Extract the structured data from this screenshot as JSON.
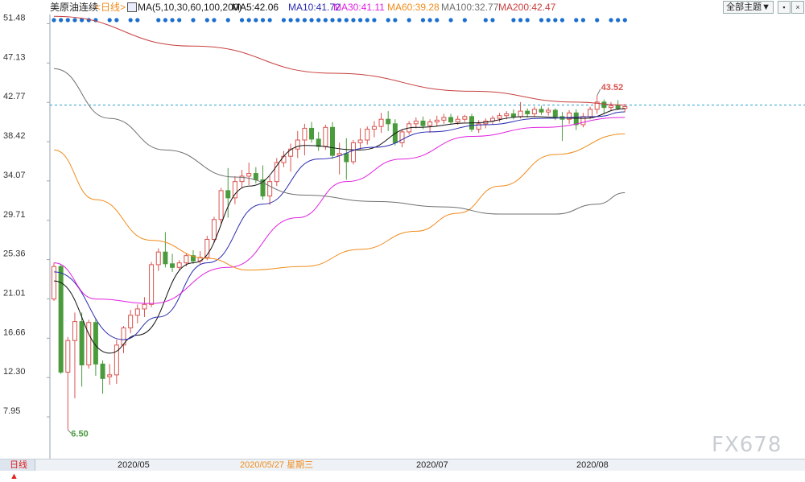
{
  "header": {
    "symbol": "美原油连续",
    "timeframe_tag": "<日线>",
    "ma_label": "MA(5,10,30,60,100,200)",
    "ma5": "MA5:42.06",
    "ma10": "MA10:41.72",
    "ma30": "MA30:41.11",
    "ma60": "MA60:39.28",
    "ma100": "MA100:32.77",
    "ma200": "MA200:42.47",
    "theme_button": "全部主题▼"
  },
  "footer": {
    "timeframe_tab": "日线 ▲",
    "dates": [
      "2020/05",
      "2020/05/27 星期三",
      "2020/07",
      "2020/08"
    ]
  },
  "watermark": "FX678",
  "colors": {
    "up": "#d9534f",
    "down": "#4a9b3c",
    "ma5": "#111111",
    "ma10": "#2b2bb0",
    "ma30": "#e020e0",
    "ma60": "#f08c1c",
    "ma100": "#707070",
    "ma200": "#c84040",
    "dots": "#1a6ecf",
    "ref_line": "#2aa0d0"
  },
  "chart_data": {
    "type": "candlestick",
    "title": "美原油连续",
    "y_ticks": [
      51.48,
      47.13,
      42.77,
      38.42,
      34.07,
      29.71,
      25.36,
      21.01,
      16.66,
      12.3,
      7.95
    ],
    "ylim": [
      3.5,
      52.5
    ],
    "x_ticks": [
      "2020/05",
      "2020/07",
      "2020/08"
    ],
    "highlighted_date": "2020/05/27 星期三",
    "annotations": {
      "high": "43.52",
      "low": "6.50"
    },
    "reference_line": 42.47,
    "ohlc": [
      [
        21.0,
        25.0,
        20.8,
        24.6
      ],
      [
        24.6,
        24.8,
        12.7,
        12.9
      ],
      [
        12.9,
        16.8,
        6.5,
        16.4
      ],
      [
        16.4,
        19.5,
        10.0,
        18.5
      ],
      [
        18.5,
        19.5,
        11.3,
        13.7
      ],
      [
        13.7,
        18.7,
        13.3,
        18.4
      ],
      [
        18.4,
        18.8,
        12.5,
        13.8
      ],
      [
        13.8,
        14.2,
        10.5,
        12.2
      ],
      [
        12.4,
        13.8,
        11.5,
        12.6
      ],
      [
        12.6,
        16.5,
        11.6,
        15.9
      ],
      [
        15.9,
        18.0,
        15.0,
        17.8
      ],
      [
        17.8,
        19.8,
        17.2,
        19.2
      ],
      [
        19.2,
        20.4,
        18.3,
        19.9
      ],
      [
        19.9,
        21.2,
        19.0,
        20.4
      ],
      [
        20.4,
        25.1,
        20.1,
        24.8
      ],
      [
        24.8,
        26.6,
        24.1,
        26.2
      ],
      [
        26.2,
        28.4,
        24.5,
        24.9
      ],
      [
        24.9,
        26.0,
        24.0,
        24.5
      ],
      [
        24.5,
        25.3,
        24.2,
        25.0
      ],
      [
        25.0,
        26.1,
        24.6,
        25.8
      ],
      [
        25.8,
        26.4,
        24.9,
        25.2
      ],
      [
        25.2,
        26.3,
        24.8,
        25.6
      ],
      [
        25.6,
        28.0,
        25.3,
        27.6
      ],
      [
        27.6,
        30.1,
        27.2,
        29.8
      ],
      [
        29.8,
        33.3,
        29.3,
        33.0
      ],
      [
        33.0,
        35.5,
        30.0,
        32.2
      ],
      [
        32.2,
        34.6,
        31.5,
        34.0
      ],
      [
        34.0,
        35.3,
        33.3,
        34.6
      ],
      [
        34.6,
        36.1,
        33.6,
        34.9
      ],
      [
        34.9,
        35.6,
        33.8,
        34.2
      ],
      [
        34.2,
        35.8,
        32.0,
        32.4
      ],
      [
        32.4,
        34.6,
        31.4,
        34.0
      ],
      [
        34.0,
        36.6,
        33.5,
        36.1
      ],
      [
        36.1,
        37.4,
        35.6,
        36.8
      ],
      [
        36.8,
        38.2,
        35.1,
        37.6
      ],
      [
        37.6,
        39.6,
        36.6,
        38.6
      ],
      [
        38.6,
        40.4,
        36.9,
        39.9
      ],
      [
        39.9,
        40.6,
        38.3,
        38.7
      ],
      [
        38.7,
        39.5,
        37.4,
        37.9
      ],
      [
        37.9,
        40.3,
        37.5,
        40.0
      ],
      [
        40.0,
        40.6,
        36.5,
        36.9
      ],
      [
        36.9,
        38.3,
        34.8,
        37.1
      ],
      [
        37.1,
        38.8,
        34.2,
        36.2
      ],
      [
        36.2,
        38.6,
        35.9,
        38.3
      ],
      [
        38.3,
        39.9,
        37.6,
        38.6
      ],
      [
        38.6,
        40.1,
        38.1,
        39.8
      ],
      [
        39.8,
        40.7,
        38.9,
        40.1
      ],
      [
        40.1,
        41.6,
        39.4,
        40.9
      ],
      [
        40.9,
        41.8,
        39.6,
        40.4
      ],
      [
        40.4,
        40.9,
        38.0,
        38.3
      ],
      [
        38.3,
        39.8,
        37.8,
        39.5
      ],
      [
        39.5,
        40.7,
        39.2,
        40.4
      ],
      [
        40.4,
        41.1,
        39.9,
        40.7
      ],
      [
        40.7,
        41.2,
        39.8,
        40.2
      ],
      [
        40.2,
        40.9,
        39.4,
        40.6
      ],
      [
        40.6,
        41.3,
        40.1,
        40.8
      ],
      [
        40.8,
        41.5,
        40.4,
        41.1
      ],
      [
        41.1,
        41.5,
        40.3,
        40.6
      ],
      [
        40.6,
        41.3,
        40.3,
        40.9
      ],
      [
        40.9,
        41.4,
        40.6,
        41.2
      ],
      [
        41.2,
        41.5,
        39.5,
        39.8
      ],
      [
        39.8,
        40.8,
        39.4,
        40.4
      ],
      [
        40.4,
        41.0,
        39.9,
        40.7
      ],
      [
        40.7,
        41.3,
        40.3,
        41.0
      ],
      [
        41.0,
        41.6,
        40.6,
        41.3
      ],
      [
        41.3,
        41.8,
        40.9,
        41.5
      ],
      [
        41.5,
        42.0,
        40.9,
        41.2
      ],
      [
        41.2,
        42.8,
        41.0,
        41.8
      ],
      [
        41.8,
        42.1,
        41.1,
        41.5
      ],
      [
        41.5,
        42.3,
        41.2,
        42.0
      ],
      [
        42.0,
        42.4,
        41.4,
        41.7
      ],
      [
        41.7,
        42.2,
        41.3,
        41.9
      ],
      [
        41.9,
        42.1,
        40.8,
        41.2
      ],
      [
        41.2,
        41.7,
        38.5,
        40.9
      ],
      [
        40.9,
        41.9,
        40.4,
        41.6
      ],
      [
        41.6,
        42.0,
        39.7,
        40.3
      ],
      [
        40.3,
        41.6,
        40.0,
        41.2
      ],
      [
        41.2,
        42.3,
        40.9,
        42.0
      ],
      [
        42.0,
        43.52,
        41.5,
        42.8
      ],
      [
        42.8,
        43.1,
        41.6,
        42.2
      ],
      [
        42.2,
        42.8,
        41.8,
        42.4
      ],
      [
        42.4,
        43.0,
        41.9,
        42.1
      ],
      [
        42.1,
        42.6,
        41.7,
        42.3
      ]
    ],
    "ma_series": {
      "MA5": [
        [
          0,
          23.0
        ],
        [
          8,
          15.0
        ],
        [
          12,
          17.0
        ],
        [
          20,
          25.0
        ],
        [
          28,
          33.5
        ],
        [
          36,
          38.0
        ],
        [
          44,
          37.5
        ],
        [
          52,
          40.0
        ],
        [
          60,
          40.5
        ],
        [
          68,
          41.2
        ],
        [
          76,
          41.0
        ],
        [
          82,
          42.06
        ]
      ],
      "MA10": [
        [
          0,
          24.0
        ],
        [
          10,
          16.5
        ],
        [
          15,
          19.0
        ],
        [
          22,
          25.0
        ],
        [
          30,
          31.5
        ],
        [
          38,
          36.5
        ],
        [
          46,
          37.8
        ],
        [
          54,
          39.5
        ],
        [
          62,
          40.3
        ],
        [
          70,
          41.0
        ],
        [
          78,
          41.2
        ],
        [
          82,
          41.72
        ]
      ],
      "MA30": [
        [
          0,
          25.0
        ],
        [
          6,
          21.0
        ],
        [
          14,
          20.5
        ],
        [
          25,
          24.5
        ],
        [
          35,
          30.0
        ],
        [
          42,
          34.0
        ],
        [
          50,
          36.5
        ],
        [
          60,
          39.0
        ],
        [
          70,
          40.0
        ],
        [
          82,
          41.11
        ]
      ],
      "MA60": [
        [
          0,
          37.5
        ],
        [
          6,
          32.0
        ],
        [
          14,
          27.5
        ],
        [
          22,
          25.5
        ],
        [
          28,
          24.2
        ],
        [
          36,
          24.6
        ],
        [
          44,
          26.5
        ],
        [
          52,
          28.5
        ],
        [
          58,
          30.5
        ],
        [
          64,
          33.5
        ],
        [
          72,
          37.0
        ],
        [
          82,
          39.28
        ]
      ],
      "MA100": [
        [
          0,
          46.5
        ],
        [
          8,
          41.0
        ],
        [
          16,
          37.5
        ],
        [
          26,
          34.5
        ],
        [
          36,
          32.5
        ],
        [
          46,
          31.8
        ],
        [
          56,
          31.2
        ],
        [
          64,
          30.4
        ],
        [
          72,
          30.4
        ],
        [
          78,
          31.5
        ],
        [
          82,
          32.77
        ]
      ],
      "MA200": [
        [
          0,
          52.3
        ],
        [
          20,
          49.0
        ],
        [
          40,
          46.0
        ],
        [
          60,
          44.0
        ],
        [
          75,
          42.8
        ],
        [
          82,
          42.47
        ]
      ]
    },
    "event_dots": [
      0,
      1,
      2,
      3,
      4,
      5,
      6,
      8,
      9,
      11,
      12,
      15,
      16,
      17,
      18,
      20,
      22,
      23,
      25,
      27,
      28,
      29,
      30,
      31,
      33,
      34,
      35,
      36,
      37,
      38,
      39,
      40,
      41,
      42,
      43,
      44,
      45,
      46,
      48,
      49,
      51,
      53,
      54,
      55,
      57,
      59,
      62,
      63,
      66,
      67,
      68,
      70,
      71,
      72,
      73,
      75,
      76,
      78,
      80,
      81,
      82
    ]
  }
}
